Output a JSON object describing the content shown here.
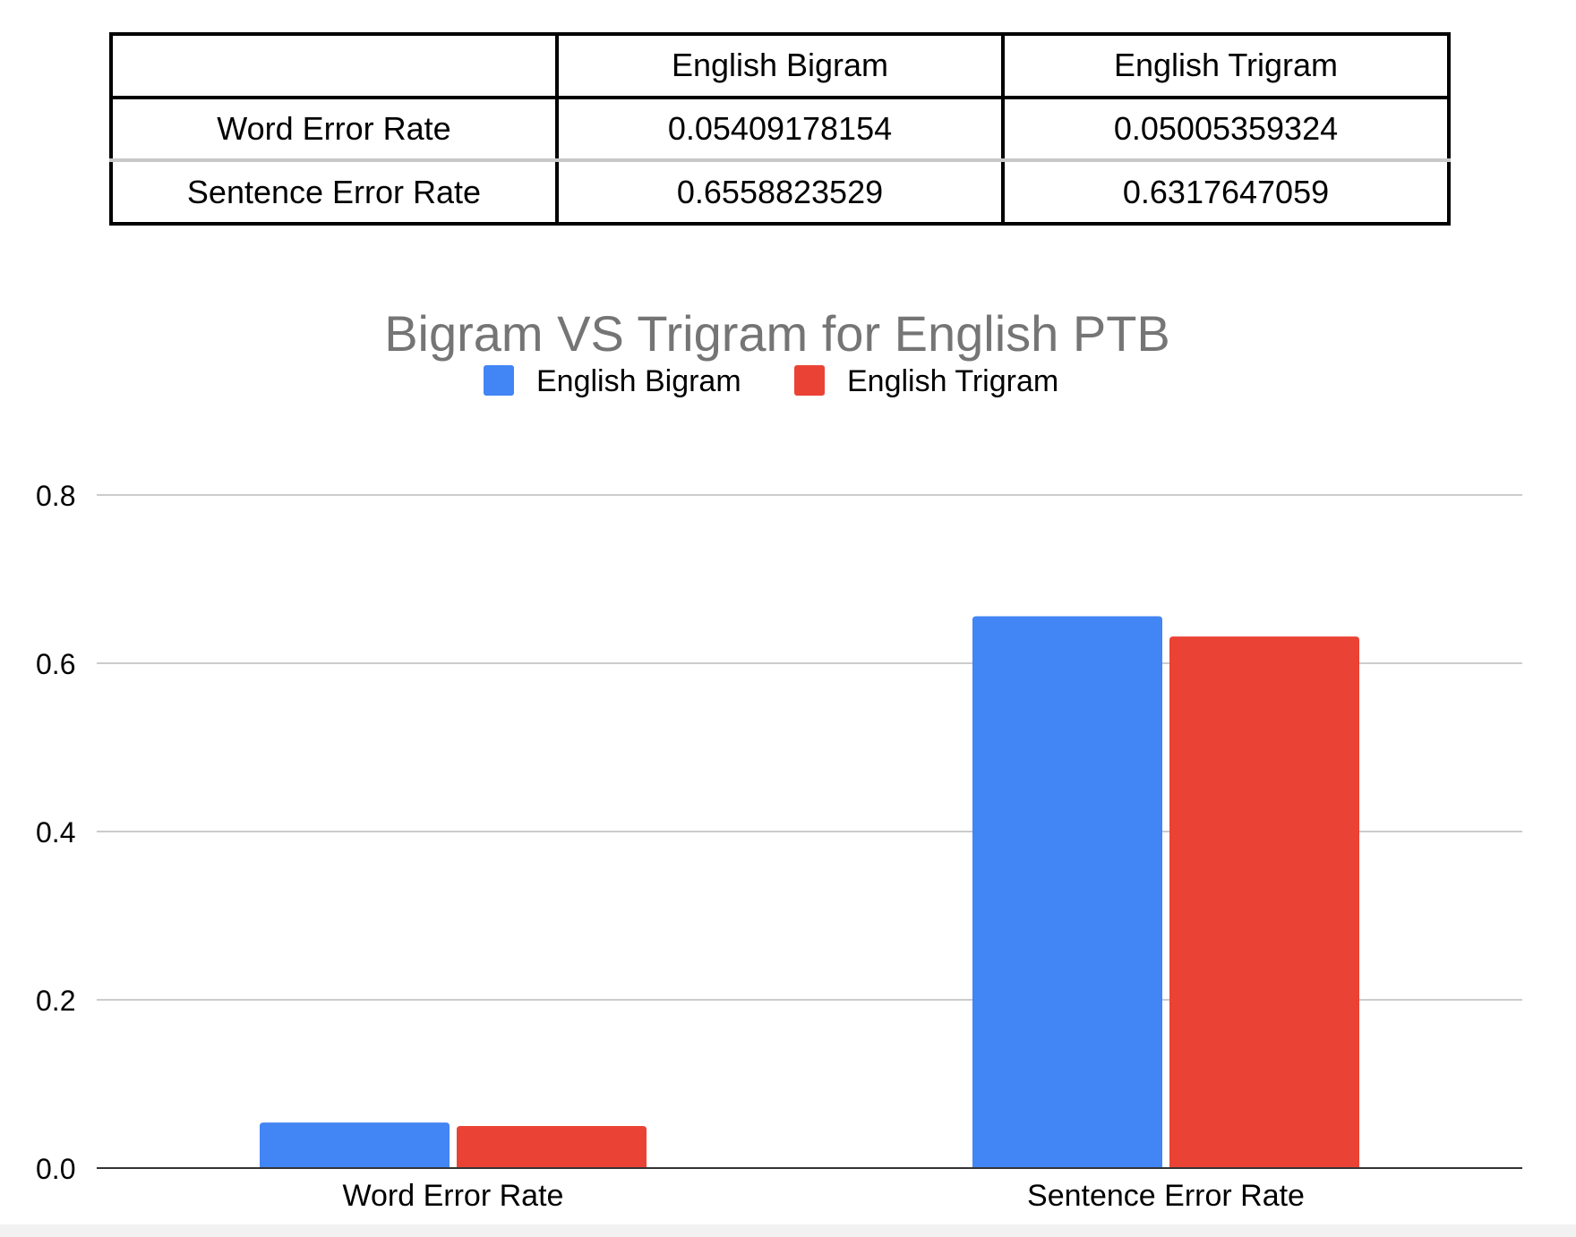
{
  "table": {
    "header": [
      "",
      "English Bigram",
      "English Trigram"
    ],
    "rows": [
      [
        "Word Error Rate",
        "0.05409178154",
        "0.05005359324"
      ],
      [
        "Sentence Error Rate",
        "0.6558823529",
        "0.6317647059"
      ]
    ]
  },
  "chart_data": {
    "type": "bar",
    "title": "Bigram VS Trigram for English PTB",
    "categories": [
      "Word Error Rate",
      "Sentence Error Rate"
    ],
    "series": [
      {
        "name": "English Bigram",
        "values": [
          0.05409178154,
          0.6558823529
        ],
        "color": "#4285f4"
      },
      {
        "name": "English Trigram",
        "values": [
          0.05005359324,
          0.6317647059
        ],
        "color": "#ea4335"
      }
    ],
    "yticks": [
      "0.0",
      "0.2",
      "0.4",
      "0.6",
      "0.8"
    ],
    "ylim": [
      0,
      0.8
    ],
    "xlabel": "",
    "ylabel": "",
    "grid": true,
    "legend_position": "top-center"
  },
  "colors": {
    "title": "#757575",
    "gridline": "#cccccc",
    "axis": "#333333",
    "text": "#000000"
  }
}
